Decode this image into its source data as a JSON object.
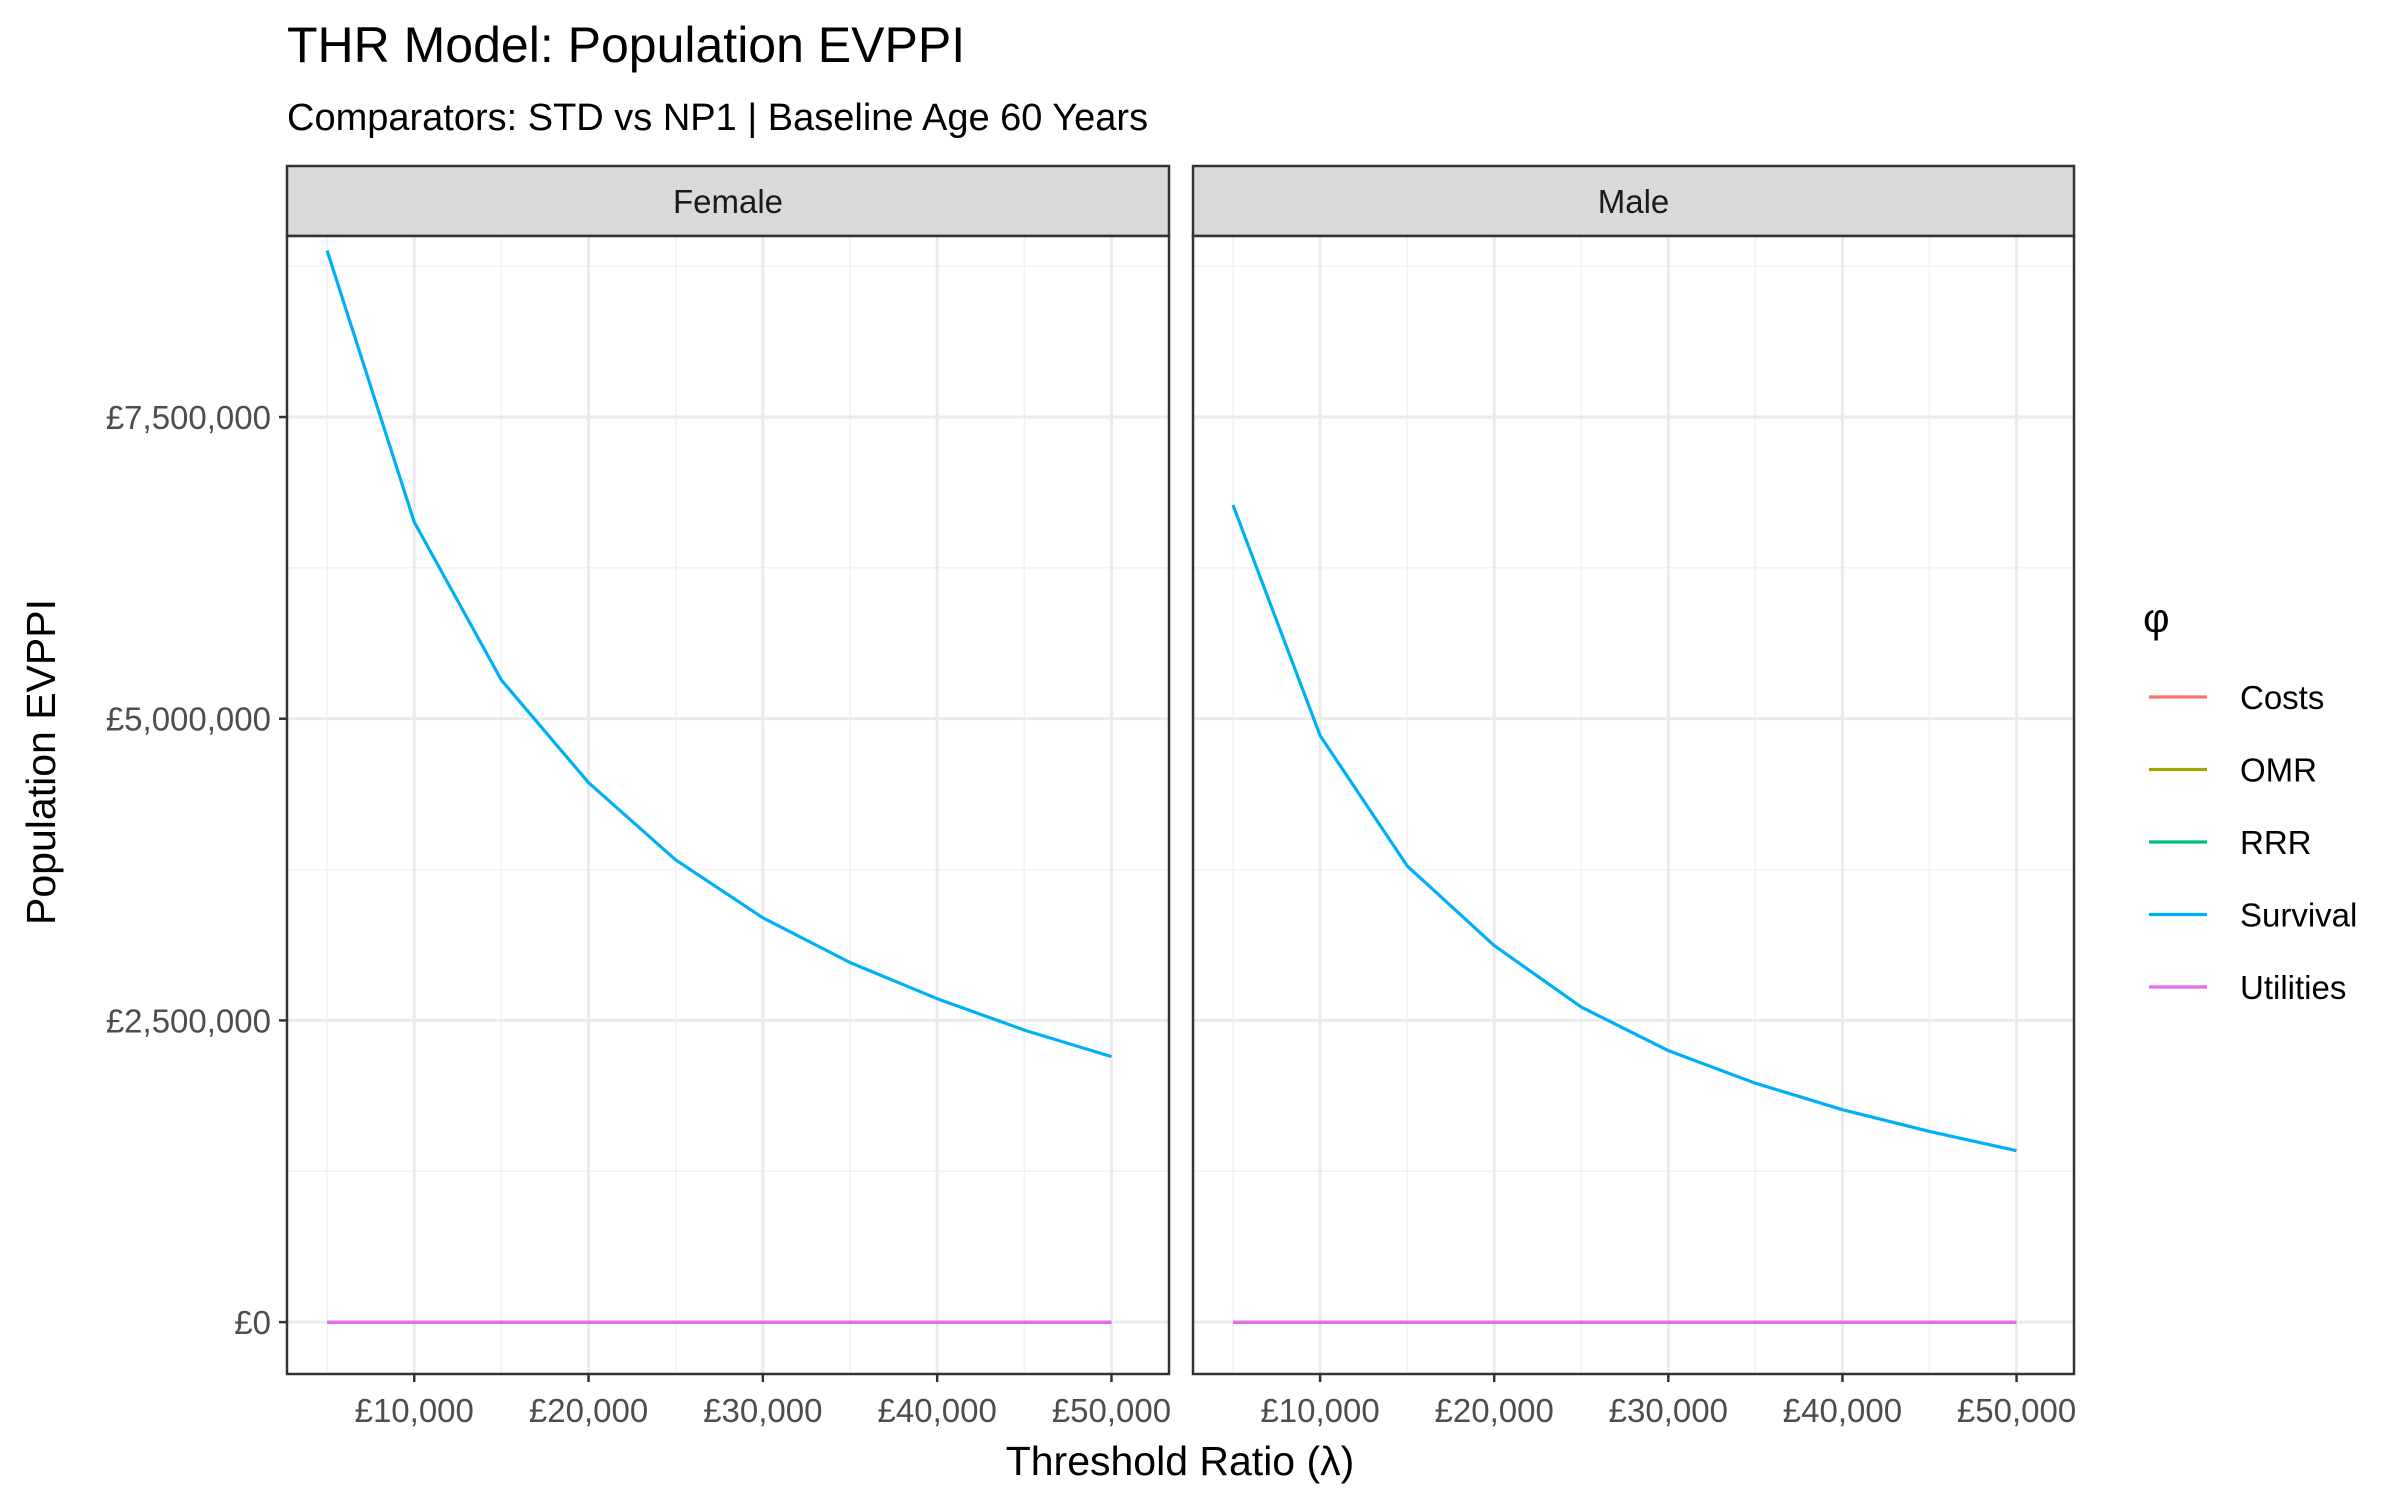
{
  "chart_data": {
    "type": "line",
    "title": "THR Model: Population EVPPI",
    "subtitle": "Comparators: STD vs NP1 | Baseline Age 60 Years",
    "xlabel": "Threshold Ratio (λ)",
    "ylabel": "Population EVPPI",
    "x": [
      5000,
      10000,
      15000,
      20000,
      25000,
      30000,
      35000,
      40000,
      45000,
      50000
    ],
    "xlim": [
      2700,
      53300
    ],
    "ylim": [
      -430000,
      9000000
    ],
    "x_ticks": [
      10000,
      20000,
      30000,
      40000,
      50000
    ],
    "x_tick_labels": [
      "£10,000",
      "£20,000",
      "£30,000",
      "£40,000",
      "£50,000"
    ],
    "y_ticks": [
      0,
      2500000,
      5000000,
      7500000
    ],
    "y_tick_labels": [
      "£0",
      "£2,500,000",
      "£5,000,000",
      "£7,500,000"
    ],
    "grid": true,
    "legend": {
      "title": "φ",
      "position": "right",
      "entries": [
        "Costs",
        "OMR",
        "RRR",
        "Survival",
        "Utilities"
      ]
    },
    "colors": {
      "Costs": "#F8766D",
      "OMR": "#A3A500",
      "RRR": "#00BF7D",
      "Survival": "#00B0F6",
      "Utilities": "#E76BF3"
    },
    "panels": [
      {
        "label": "Female",
        "series": [
          {
            "name": "Costs",
            "values": [
              0,
              0,
              0,
              0,
              0,
              0,
              0,
              0,
              0,
              0
            ]
          },
          {
            "name": "OMR",
            "values": [
              0,
              0,
              0,
              0,
              0,
              0,
              0,
              0,
              0,
              0
            ]
          },
          {
            "name": "RRR",
            "values": [
              0,
              0,
              0,
              0,
              0,
              0,
              0,
              0,
              0,
              0
            ]
          },
          {
            "name": "Survival",
            "values": [
              8880000,
              6630000,
              5320000,
              4470000,
              3830000,
              3350000,
              2980000,
              2680000,
              2420000,
              2200000
            ]
          },
          {
            "name": "Utilities",
            "values": [
              0,
              0,
              0,
              0,
              0,
              0,
              0,
              0,
              0,
              0
            ]
          }
        ]
      },
      {
        "label": "Male",
        "series": [
          {
            "name": "Costs",
            "values": [
              0,
              0,
              0,
              0,
              0,
              0,
              0,
              0,
              0,
              0
            ]
          },
          {
            "name": "OMR",
            "values": [
              0,
              0,
              0,
              0,
              0,
              0,
              0,
              0,
              0,
              0
            ]
          },
          {
            "name": "RRR",
            "values": [
              0,
              0,
              0,
              0,
              0,
              0,
              0,
              0,
              0,
              0
            ]
          },
          {
            "name": "Survival",
            "values": [
              6770000,
              4860000,
              3780000,
              3120000,
              2610000,
              2250000,
              1980000,
              1760000,
              1580000,
              1420000
            ]
          },
          {
            "name": "Utilities",
            "values": [
              0,
              0,
              0,
              0,
              0,
              0,
              0,
              0,
              0,
              0
            ]
          }
        ]
      }
    ]
  }
}
